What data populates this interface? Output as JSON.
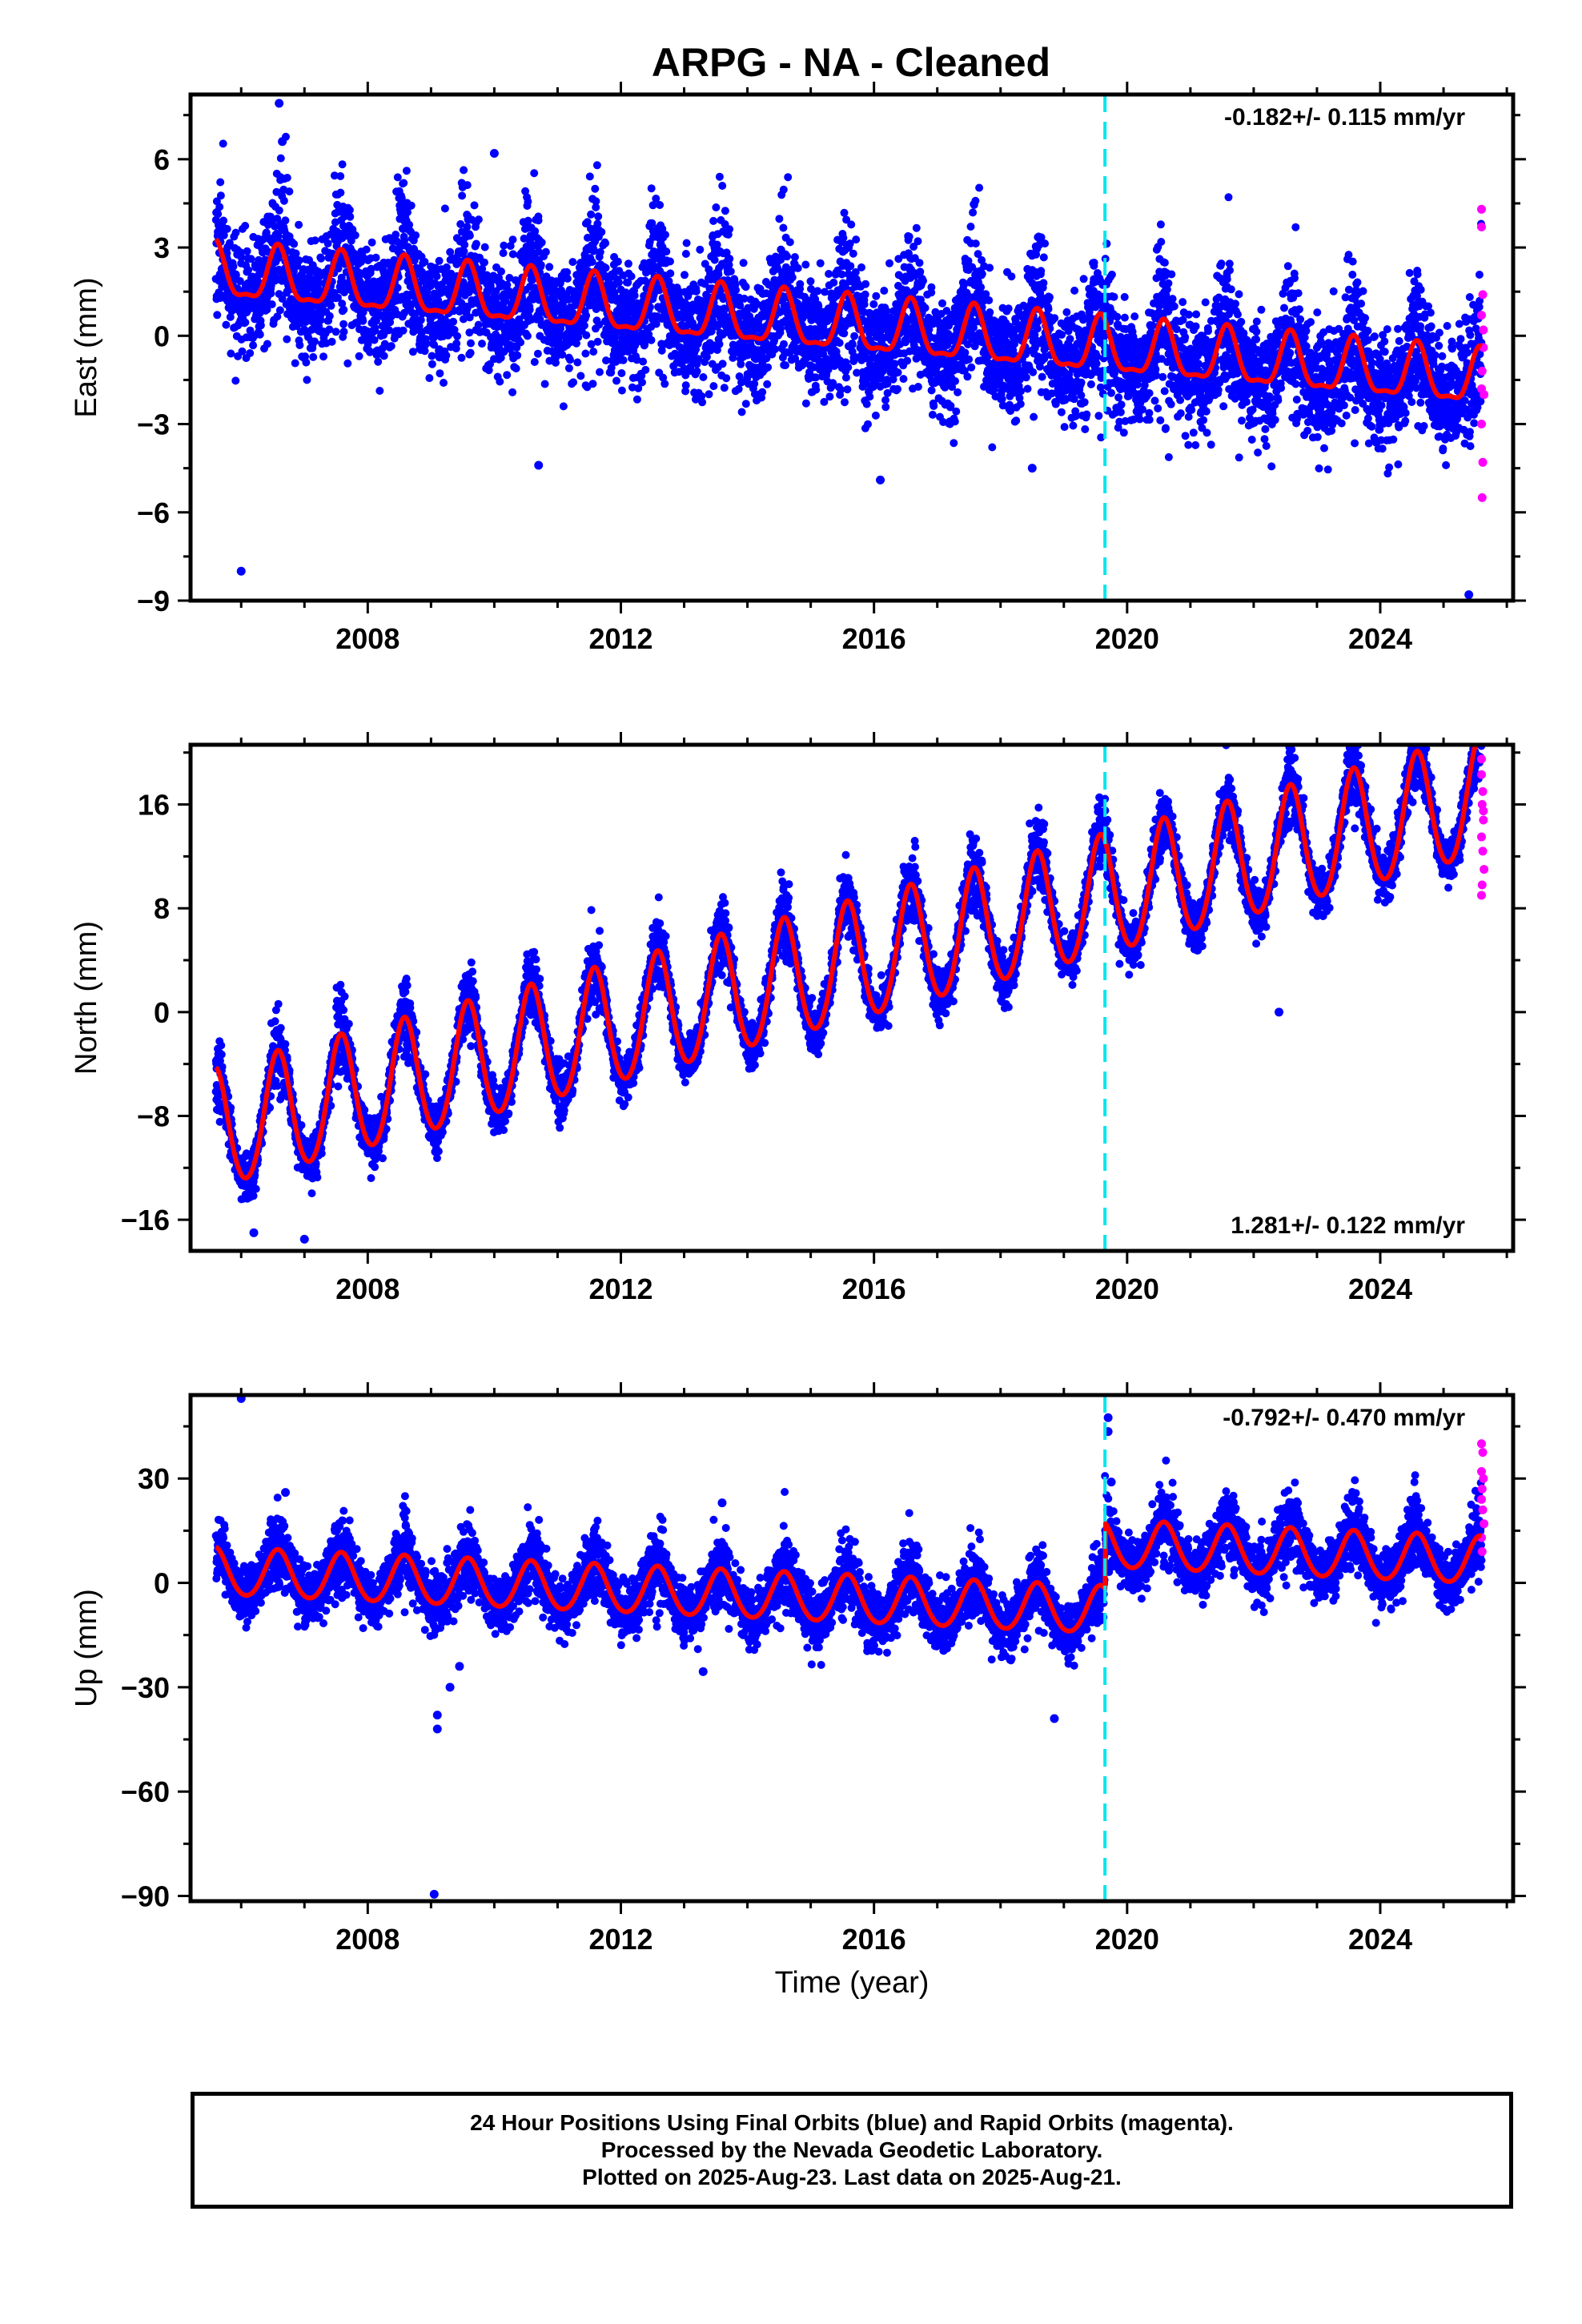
{
  "title": "ARPG  - NA - Cleaned",
  "colors": {
    "final": "#0000ff",
    "rapid": "#ff00ff",
    "model": "#ff0000",
    "event": "#00e5ee",
    "frame": "#000000"
  },
  "footer": {
    "line1": "24 Hour Positions Using Final Orbits (blue) and Rapid Orbits (magenta).",
    "line2": "Processed by the Nevada Geodetic Laboratory.",
    "line3": "Plotted on 2025-Aug-23. Last data on 2025-Aug-21."
  },
  "chart_data": [
    {
      "type": "scatter",
      "name": "east",
      "ylabel": "East (mm)",
      "xlabel": "",
      "rate_text": "-0.182+/- 0.115 mm/yr",
      "rate_position": "top-right",
      "xlim": [
        2005.2,
        2026.1
      ],
      "ylim": [
        -9.0,
        8.2
      ],
      "xticks": [
        2008,
        2012,
        2016,
        2020,
        2024
      ],
      "xtick_labels": [
        "2008",
        "2012",
        "2016",
        "2020",
        "2024"
      ],
      "yticks": [
        6,
        3,
        0,
        -3,
        -6,
        -9
      ],
      "ytick_labels": [
        "6",
        "3",
        "0",
        "-3",
        "-6",
        "-9"
      ],
      "event_line_x": 2019.65,
      "model": {
        "offset": 2.1,
        "rate": -0.182,
        "annual_amp": 0.9,
        "semiannual_amp": 0.3,
        "phase": 0.58,
        "t0": 2005.6,
        "jumps": [],
        "t_end": 2025.6
      },
      "scatter": {
        "noise": 1.25,
        "peak_noise": 1.3,
        "seed": 11
      },
      "outliers": [
        {
          "x": 2006.6,
          "y": 7.9
        },
        {
          "x": 2006.0,
          "y": -8.0
        },
        {
          "x": 2010.0,
          "y": 6.2
        },
        {
          "x": 2025.4,
          "y": -8.8
        },
        {
          "x": 2006.65,
          "y": 6.6
        },
        {
          "x": 2010.7,
          "y": -4.4
        },
        {
          "x": 2016.1,
          "y": -4.9
        },
        {
          "x": 2018.5,
          "y": -4.5
        }
      ],
      "rapid": [
        {
          "x": 2025.6,
          "y": 4.3
        },
        {
          "x": 2025.6,
          "y": 3.7
        },
        {
          "x": 2025.62,
          "y": 1.4
        },
        {
          "x": 2025.6,
          "y": 0.7
        },
        {
          "x": 2025.63,
          "y": -0.4
        },
        {
          "x": 2025.61,
          "y": -1.2
        },
        {
          "x": 2025.64,
          "y": -2.0
        },
        {
          "x": 2025.6,
          "y": -3.0
        },
        {
          "x": 2025.62,
          "y": -4.3
        },
        {
          "x": 2025.61,
          "y": -5.5
        },
        {
          "x": 2025.63,
          "y": 0.2
        },
        {
          "x": 2025.6,
          "y": -1.8
        }
      ]
    },
    {
      "type": "scatter",
      "name": "north",
      "ylabel": "North (mm)",
      "xlabel": "",
      "rate_text": "1.281+/- 0.122 mm/yr",
      "rate_position": "bottom-right",
      "xlim": [
        2005.2,
        2026.1
      ],
      "ylim": [
        -18.4,
        20.6
      ],
      "xticks": [
        2008,
        2012,
        2016,
        2020,
        2024
      ],
      "xtick_labels": [
        "2008",
        "2012",
        "2016",
        "2020",
        "2024"
      ],
      "yticks": [
        16,
        8,
        0,
        -8,
        -16
      ],
      "ytick_labels": [
        "16",
        "8",
        "0",
        "-8",
        "-16"
      ],
      "event_line_x": 2019.65,
      "model": {
        "offset": -9.2,
        "rate": 1.281,
        "annual_amp": 4.6,
        "semiannual_amp": 0.4,
        "phase": 0.58,
        "t0": 2005.6,
        "jumps": [],
        "t_end": 2025.6
      },
      "scatter": {
        "noise": 1.15,
        "peak_noise": 1.6,
        "seed": 23
      },
      "outliers": [
        {
          "x": 2010.6,
          "y": 3.3
        },
        {
          "x": 2022.4,
          "y": 0.0
        },
        {
          "x": 2007.0,
          "y": -17.5
        },
        {
          "x": 2006.2,
          "y": -17.0
        },
        {
          "x": 2013.7,
          "y": 6.5
        },
        {
          "x": 2018.6,
          "y": 10.2
        }
      ],
      "rapid": [
        {
          "x": 2025.6,
          "y": 19.5
        },
        {
          "x": 2025.6,
          "y": 18.3
        },
        {
          "x": 2025.62,
          "y": 17.0
        },
        {
          "x": 2025.61,
          "y": 16.0
        },
        {
          "x": 2025.63,
          "y": 14.8
        },
        {
          "x": 2025.6,
          "y": 13.5
        },
        {
          "x": 2025.62,
          "y": 12.4
        },
        {
          "x": 2025.64,
          "y": 11.0
        },
        {
          "x": 2025.61,
          "y": 9.8
        },
        {
          "x": 2025.6,
          "y": 9.0
        },
        {
          "x": 2025.63,
          "y": 15.5
        }
      ]
    },
    {
      "type": "scatter",
      "name": "up",
      "ylabel": "Up (mm)",
      "xlabel": "Time (year)",
      "rate_text": "-0.792+/- 0.470 mm/yr",
      "rate_position": "top-right",
      "xlim": [
        2005.2,
        2026.1
      ],
      "ylim": [
        -91.5,
        54.0
      ],
      "xticks": [
        2008,
        2012,
        2016,
        2020,
        2024
      ],
      "xtick_labels": [
        "2008",
        "2012",
        "2016",
        "2020",
        "2024"
      ],
      "yticks": [
        30,
        0,
        -30,
        -60,
        -90
      ],
      "ytick_labels": [
        "30",
        "0",
        "-30",
        "-60",
        "-90"
      ],
      "event_line_x": 2019.65,
      "model": {
        "offset": 3.0,
        "rate": -0.792,
        "annual_amp": 6.8,
        "semiannual_amp": 0.6,
        "phase": 0.58,
        "t0": 2005.6,
        "jumps": [
          {
            "x": 2019.65,
            "dy": 19.0
          }
        ],
        "t_end": 2025.6
      },
      "scatter": {
        "noise": 5.2,
        "peak_noise": 5.5,
        "seed": 37
      },
      "outliers": [
        {
          "x": 2006.0,
          "y": 53.0
        },
        {
          "x": 2009.05,
          "y": -89.5
        },
        {
          "x": 2009.1,
          "y": -42.0
        },
        {
          "x": 2009.1,
          "y": -38.0
        },
        {
          "x": 2009.45,
          "y": -24.0
        },
        {
          "x": 2009.3,
          "y": -30.0
        },
        {
          "x": 2018.85,
          "y": -39.0
        },
        {
          "x": 2019.7,
          "y": 47.5
        },
        {
          "x": 2019.7,
          "y": 43.5
        },
        {
          "x": 2019.75,
          "y": 29.0
        },
        {
          "x": 2013.6,
          "y": 23.0
        },
        {
          "x": 2013.3,
          "y": -25.5
        },
        {
          "x": 2006.7,
          "y": 26.0
        }
      ],
      "rapid": [
        {
          "x": 2025.6,
          "y": 40.0
        },
        {
          "x": 2025.62,
          "y": 37.5
        },
        {
          "x": 2025.6,
          "y": 32.0
        },
        {
          "x": 2025.63,
          "y": 30.0
        },
        {
          "x": 2025.61,
          "y": 27.0
        },
        {
          "x": 2025.6,
          "y": 24.0
        },
        {
          "x": 2025.62,
          "y": 21.0
        },
        {
          "x": 2025.64,
          "y": 17.0
        },
        {
          "x": 2025.6,
          "y": 13.0
        },
        {
          "x": 2025.61,
          "y": 9.0
        }
      ]
    }
  ]
}
